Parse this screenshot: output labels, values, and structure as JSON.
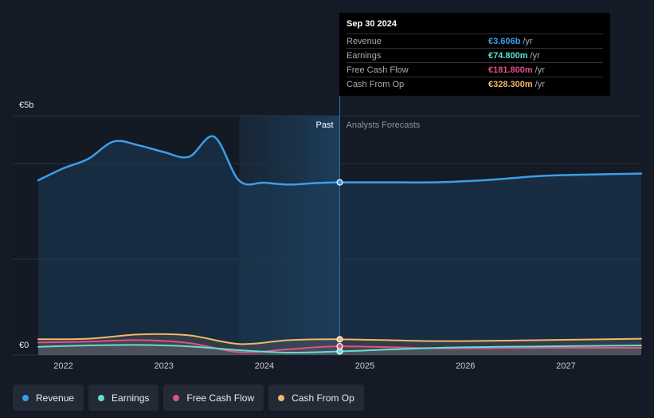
{
  "tooltip": {
    "date": "Sep 30 2024",
    "rows": [
      {
        "label": "Revenue",
        "value": "€3.606b",
        "unit": "/yr",
        "color": "#3b9fe8"
      },
      {
        "label": "Earnings",
        "value": "€74.800m",
        "unit": "/yr",
        "color": "#5ee0cf"
      },
      {
        "label": "Free Cash Flow",
        "value": "€181.800m",
        "unit": "/yr",
        "color": "#e0508a"
      },
      {
        "label": "Cash From Op",
        "value": "€328.300m",
        "unit": "/yr",
        "color": "#f0b86a"
      }
    ]
  },
  "legend": [
    {
      "label": "Revenue",
      "color": "#3b9fe8"
    },
    {
      "label": "Earnings",
      "color": "#5ee0cf"
    },
    {
      "label": "Free Cash Flow",
      "color": "#e0508a"
    },
    {
      "label": "Cash From Op",
      "color": "#f0b86a"
    }
  ],
  "chart_data": {
    "type": "line",
    "y_top_label": "€5b",
    "y_bottom_label": "€0",
    "ylim": [
      0,
      5000
    ],
    "xlim": [
      2021.75,
      2027.75
    ],
    "x_tick_labels": [
      "2022",
      "2023",
      "2024",
      "2025",
      "2026",
      "2027"
    ],
    "x_ticks": [
      2022,
      2023,
      2024,
      2025,
      2026,
      2027
    ],
    "past_label": "Past",
    "forecast_label": "Analysts Forecasts",
    "past_region": [
      2023.75,
      2024.75
    ],
    "current_x": 2024.75,
    "series": [
      {
        "name": "Revenue",
        "color": "#3b9fe8",
        "x": [
          2021.75,
          2022.0,
          2022.25,
          2022.5,
          2022.75,
          2023.0,
          2023.25,
          2023.5,
          2023.75,
          2024.0,
          2024.25,
          2024.5,
          2024.75,
          2025.25,
          2025.75,
          2026.25,
          2026.75,
          2027.25,
          2027.75
        ],
        "y": [
          3650,
          3900,
          4100,
          4460,
          4380,
          4240,
          4140,
          4560,
          3640,
          3600,
          3560,
          3590,
          3606,
          3606,
          3610,
          3660,
          3740,
          3770,
          3790
        ]
      },
      {
        "name": "Earnings",
        "color": "#5ee0cf",
        "x": [
          2021.75,
          2022.25,
          2022.75,
          2023.25,
          2023.75,
          2024.25,
          2024.75,
          2025.75,
          2026.75,
          2027.75
        ],
        "y": [
          170,
          200,
          210,
          180,
          100,
          50,
          75,
          150,
          180,
          200
        ]
      },
      {
        "name": "Free Cash Flow",
        "color": "#e0508a",
        "x": [
          2021.75,
          2022.25,
          2022.75,
          2023.25,
          2023.75,
          2024.25,
          2024.75,
          2025.75,
          2026.75,
          2027.75
        ],
        "y": [
          260,
          280,
          310,
          250,
          60,
          120,
          182,
          140,
          150,
          150
        ]
      },
      {
        "name": "Cash From Op",
        "color": "#f0b86a",
        "x": [
          2021.75,
          2022.25,
          2022.75,
          2023.25,
          2023.75,
          2024.25,
          2024.75,
          2025.75,
          2026.75,
          2027.75
        ],
        "y": [
          330,
          340,
          430,
          410,
          230,
          310,
          328,
          290,
          310,
          340
        ]
      }
    ]
  }
}
